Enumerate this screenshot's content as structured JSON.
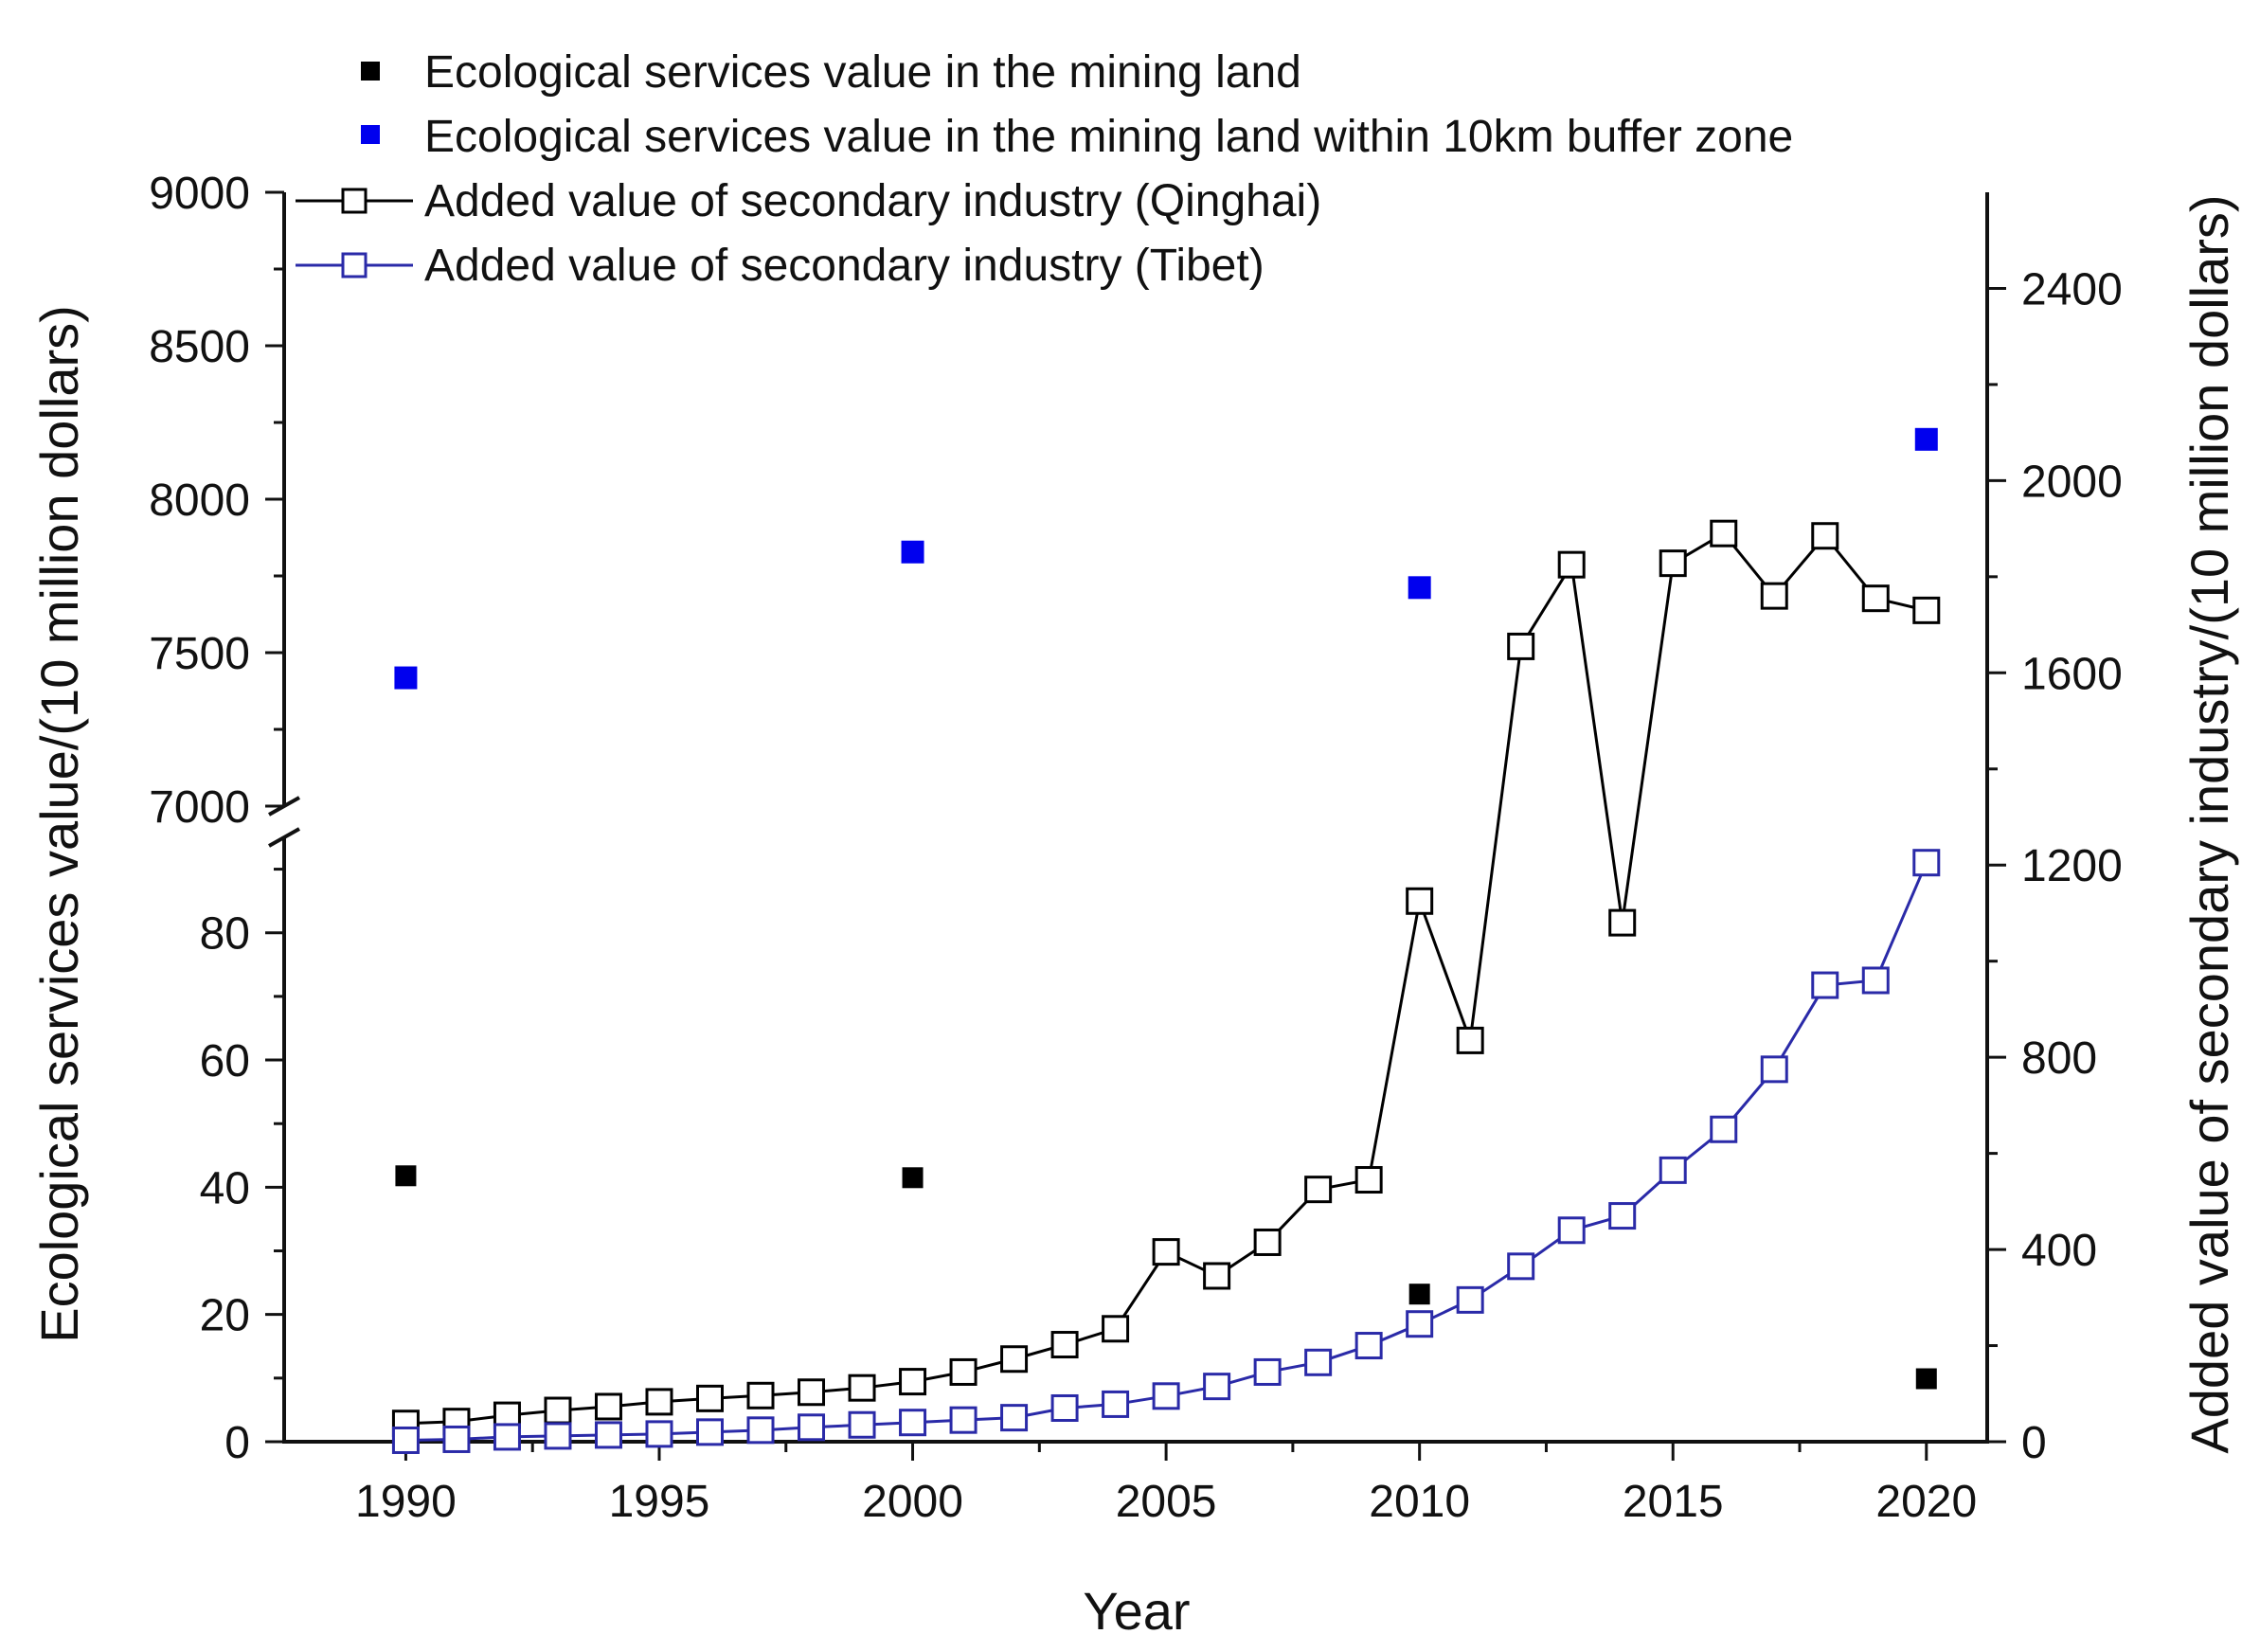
{
  "chart_data": {
    "type": "scatter+line",
    "xlabel": "Year",
    "ylabel_left": "Ecological services value/(10 million dollars)",
    "ylabel_right": "Added value of secondary industry/(10 million dollars)",
    "x_ticks": [
      1990,
      1995,
      2000,
      2005,
      2010,
      2015,
      2020
    ],
    "x_range": [
      1987.6,
      2021.2
    ],
    "y_left_lower_range": [
      0,
      95
    ],
    "y_left_lower_ticks": [
      0,
      20,
      40,
      60,
      80
    ],
    "y_left_upper_range": [
      7000,
      9000
    ],
    "y_left_upper_ticks": [
      7000,
      7500,
      8000,
      8500,
      9000
    ],
    "y_right_range": [
      0,
      2600
    ],
    "y_right_ticks": [
      0,
      400,
      800,
      1200,
      1600,
      2000,
      2400
    ],
    "legend": [
      {
        "label": "Ecological services value in the mining land",
        "marker": "filled-square",
        "color": "#000000"
      },
      {
        "label": "Ecological services value in the mining land within 10km buffer zone",
        "marker": "filled-square",
        "color": "#0000ee"
      },
      {
        "label": "Added value of secondary industry  (Qinghai)",
        "marker": "open-square-line",
        "color": "#000000"
      },
      {
        "label": "Added value of secondary industry (Tibet)",
        "marker": "open-square-line",
        "color": "#2a2aa8"
      }
    ],
    "series": [
      {
        "name": "Ecological services value in the mining land",
        "axis": "left",
        "x": [
          1990,
          2000,
          2010,
          2020
        ],
        "values": [
          41.8,
          41.5,
          23.2,
          9.9
        ]
      },
      {
        "name": "Ecological services value in the mining land within 10km buffer zone",
        "axis": "left",
        "x": [
          1990,
          2000,
          2010,
          2020
        ],
        "values": [
          7418,
          7828,
          7712,
          8195
        ]
      },
      {
        "name": "Added value of secondary industry  (Qinghai)",
        "axis": "right",
        "x": [
          1990,
          1991,
          1992,
          1993,
          1994,
          1995,
          1996,
          1997,
          1998,
          1999,
          2000,
          2001,
          2002,
          2003,
          2004,
          2005,
          2006,
          2007,
          2008,
          2009,
          2010,
          2011,
          2012,
          2013,
          2014,
          2015,
          2016,
          2017,
          2018,
          2019,
          2020
        ],
        "values": [
          38,
          42,
          55,
          65,
          73,
          83,
          90,
          96,
          103,
          112,
          125,
          145,
          172,
          202,
          235,
          395,
          345,
          415,
          525,
          545,
          1125,
          835,
          1655,
          1825,
          1080,
          1828,
          1890,
          1760,
          1885,
          1755,
          1730
        ]
      },
      {
        "name": "Added value of secondary industry (Tibet)",
        "axis": "right",
        "x": [
          1990,
          1991,
          1992,
          1993,
          1994,
          1995,
          1996,
          1997,
          1998,
          1999,
          2000,
          2001,
          2002,
          2003,
          2004,
          2005,
          2006,
          2007,
          2008,
          2009,
          2010,
          2011,
          2012,
          2013,
          2014,
          2015,
          2016,
          2017,
          2018,
          2019,
          2020
        ],
        "values": [
          3,
          5,
          10,
          12,
          14,
          16,
          20,
          24,
          30,
          35,
          40,
          45,
          50,
          70,
          78,
          95,
          115,
          145,
          165,
          200,
          245,
          295,
          365,
          440,
          470,
          565,
          650,
          775,
          950,
          960,
          1205
        ]
      }
    ]
  }
}
